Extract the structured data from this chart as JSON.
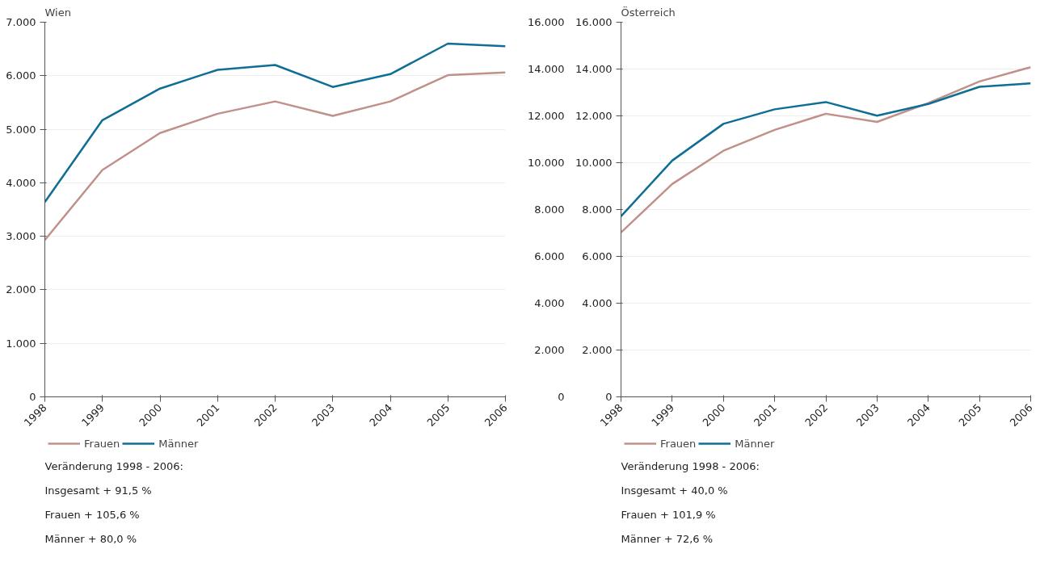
{
  "chart_data": [
    {
      "type": "line",
      "title": "Wien",
      "x": [
        1998,
        1999,
        2000,
        2001,
        2002,
        2003,
        2004,
        2005,
        2006
      ],
      "xlim": [
        1998,
        2006
      ],
      "xticks": [
        1998,
        1999,
        2000,
        2001,
        2002,
        2003,
        2004,
        2005,
        2006
      ],
      "ylim": [
        0,
        7000
      ],
      "yticks": [
        {
          "value": 0,
          "label": "0"
        },
        {
          "value": 1000,
          "label": "1.000"
        },
        {
          "value": 2000,
          "label": "2.000"
        },
        {
          "value": 3000,
          "label": "3.000"
        },
        {
          "value": 4000,
          "label": "4.000"
        },
        {
          "value": 5000,
          "label": "5.000"
        },
        {
          "value": 6000,
          "label": "6.000"
        },
        {
          "value": 7000,
          "label": "7.000"
        }
      ],
      "grid": "y",
      "legend": "bottom",
      "line_style": "solid",
      "series": [
        {
          "name": "Frauen",
          "color": "#c0908b",
          "values": [
            2930,
            4240,
            4930,
            5290,
            5520,
            5250,
            5520,
            6010,
            6060
          ]
        },
        {
          "name": "Männer",
          "color": "#0e6e96",
          "values": [
            3640,
            5170,
            5760,
            6110,
            6200,
            5790,
            6030,
            6600,
            6550
          ]
        }
      ],
      "annotations": [
        "Veränderung 1998 - 2006:",
        "Insgesamt    + 91,5 %",
        "Frauen       + 105,6 %",
        "Männer       + 80,0 %"
      ]
    },
    {
      "type": "line",
      "title": "Österreich",
      "x": [
        1998,
        1999,
        2000,
        2001,
        2002,
        2003,
        2004,
        2005,
        2006
      ],
      "xlim": [
        1998,
        2006
      ],
      "xticks": [
        1998,
        1999,
        2000,
        2001,
        2002,
        2003,
        2004,
        2005,
        2006
      ],
      "ylim": [
        0,
        16000
      ],
      "yticks": [
        {
          "value": 0,
          "label": "0"
        },
        {
          "value": 2000,
          "label": "2.000"
        },
        {
          "value": 4000,
          "label": "4.000"
        },
        {
          "value": 6000,
          "label": "6.000"
        },
        {
          "value": 8000,
          "label": "8.000"
        },
        {
          "value": 10000,
          "label": "10.000"
        },
        {
          "value": 12000,
          "label": "12.000"
        },
        {
          "value": 14000,
          "label": "14.000"
        },
        {
          "value": 16000,
          "label": "16.000"
        }
      ],
      "y2lim": [
        0,
        16000
      ],
      "y2ticks": [
        {
          "value": 0,
          "label": "0"
        },
        {
          "value": 2000,
          "label": "2.000"
        },
        {
          "value": 4000,
          "label": "4.000"
        },
        {
          "value": 6000,
          "label": "6.000"
        },
        {
          "value": 8000,
          "label": "8.000"
        },
        {
          "value": 10000,
          "label": "10.000"
        },
        {
          "value": 12000,
          "label": "12.000"
        },
        {
          "value": 14000,
          "label": "14.000"
        },
        {
          "value": 16000,
          "label": "16.000"
        }
      ],
      "grid": "y",
      "legend": "bottom",
      "line_style": "solid",
      "series": [
        {
          "name": "Frauen",
          "color": "#c0908b",
          "values": [
            7020,
            9090,
            10510,
            11400,
            12090,
            11740,
            12550,
            13470,
            14080
          ]
        },
        {
          "name": "Männer",
          "color": "#0e6e96",
          "values": [
            7710,
            10090,
            11660,
            12280,
            12590,
            12010,
            12510,
            13240,
            13390
          ]
        }
      ],
      "annotations": [
        "Veränderung 1998 - 2006:",
        "Insgesamt    + 40,0 %",
        "Frauen         + 101,9 %",
        "Männer         + 72,6 %"
      ]
    }
  ]
}
